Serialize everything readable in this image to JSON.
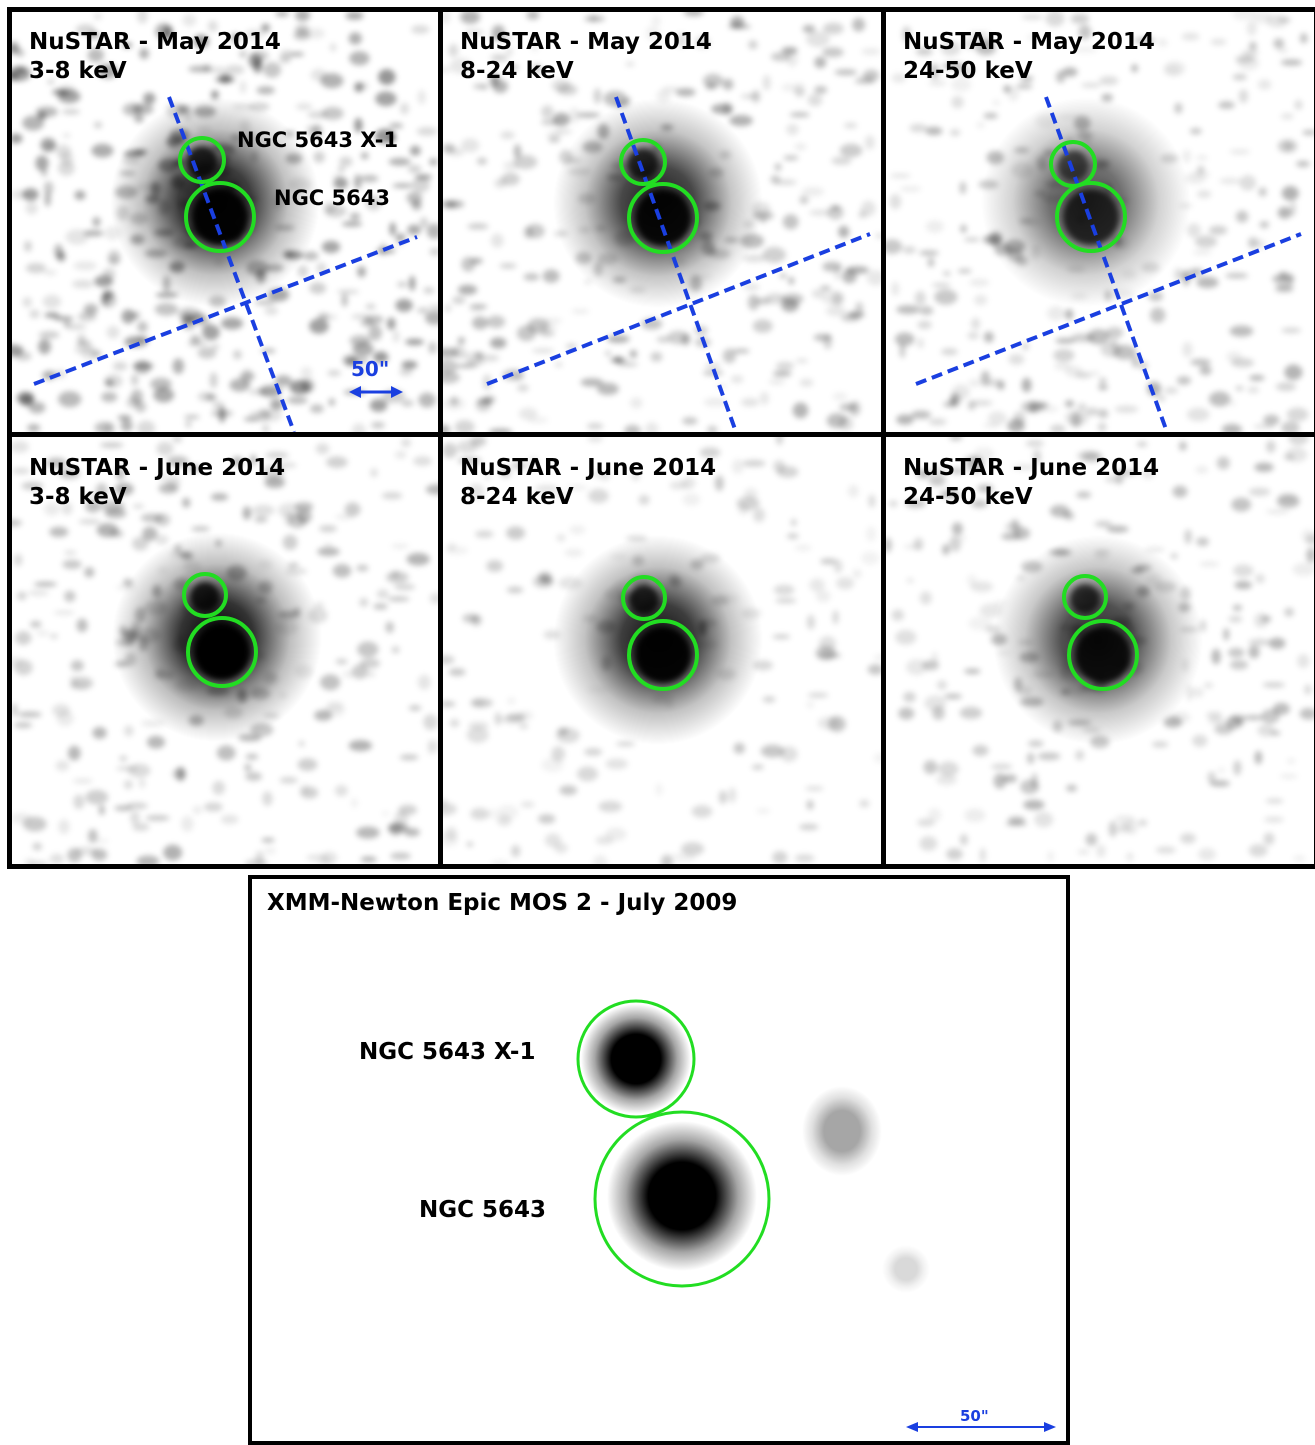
{
  "colors": {
    "region_circle": "#22dd22",
    "axis_line": "#1a3fe0",
    "frame": "#000000"
  },
  "nustar_panels": [
    {
      "title_line1": "NuSTAR - May 2014",
      "title_line2": "3-8 keV",
      "intensity": 0.95,
      "background": 0.55
    },
    {
      "title_line1": "NuSTAR - May 2014",
      "title_line2": "8-24 keV",
      "intensity": 0.9,
      "background": 0.35
    },
    {
      "title_line1": "NuSTAR - May 2014",
      "title_line2": "24-50 keV",
      "intensity": 0.7,
      "background": 0.3
    },
    {
      "title_line1": "NuSTAR - June 2014",
      "title_line2": "3-8 keV",
      "intensity": 1.0,
      "background": 0.3
    },
    {
      "title_line1": "NuSTAR - June 2014",
      "title_line2": "8-24 keV",
      "intensity": 0.95,
      "background": 0.12
    },
    {
      "title_line1": "NuSTAR - June 2014",
      "title_line2": "24-50 keV",
      "intensity": 0.85,
      "background": 0.25
    }
  ],
  "source_labels": {
    "x1": "NGC 5643 X-1",
    "nucleus": "NGC 5643"
  },
  "scale_label": "50\"",
  "xmm": {
    "title": "XMM-Newton Epic MOS 2 - July 2009",
    "label_x1": "NGC 5643 X-1",
    "label_nucleus": "NGC 5643",
    "scale_label": "50\""
  }
}
